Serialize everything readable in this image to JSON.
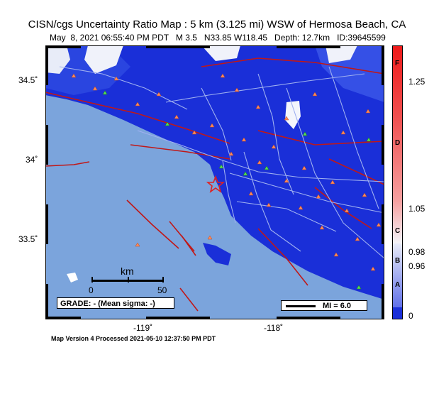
{
  "header": {
    "title": "CISN/cgs Uncertainty Ratio Map : 5 km (3.125 mi) WSW of Hermosa Beach, CA",
    "subtitle": "May  8, 2021 06:55:40 PM PDT   M 3.5   N33.85 W118.45   Depth: 12.7km   ID:39645599"
  },
  "axes": {
    "lat_ticks": [
      "34.5˚",
      "34˚",
      "33.5˚"
    ],
    "lon_ticks": [
      "-119˚",
      "-118˚"
    ]
  },
  "scale_bar": {
    "unit": "km",
    "start": "0",
    "end": "50"
  },
  "grade_box": {
    "text": "GRADE: - (Mean sigma: -)"
  },
  "mi_box": {
    "text": "MI = 6.0"
  },
  "colorbar": {
    "value_labels": [
      "1.25",
      "1.05",
      "0.98",
      "0.96",
      "0"
    ],
    "grade_labels": [
      "F",
      "D",
      "C",
      "B",
      "A"
    ]
  },
  "footer": {
    "text": "Map Version 4 Processed 2021-05-10 12:37:50 PM PDT"
  },
  "colors": {
    "ocean": "#7ba4dc",
    "land_high": "#1a2fd8",
    "land_mid": "#3a55e8",
    "station_orange": "#ff8a5a",
    "station_green": "#55dd55",
    "faults": "#c01818",
    "epicenter": "#e02020"
  }
}
